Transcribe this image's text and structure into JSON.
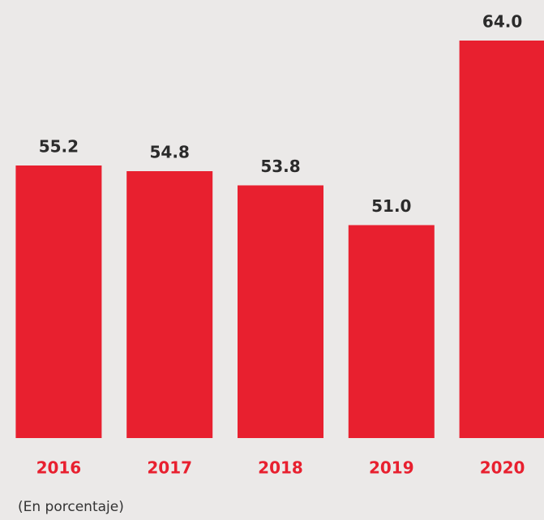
{
  "chart_data": {
    "type": "bar",
    "categories": [
      "2016",
      "2017",
      "2018",
      "2019",
      "2020"
    ],
    "values": [
      55.2,
      54.8,
      53.8,
      51,
      64
    ],
    "value_labels": [
      "55.2",
      "54.8",
      "53.8",
      "51.0",
      "64.0"
    ],
    "color": "#e8202f",
    "ylim": [
      36,
      66
    ],
    "note": "(En porcentaje)"
  }
}
